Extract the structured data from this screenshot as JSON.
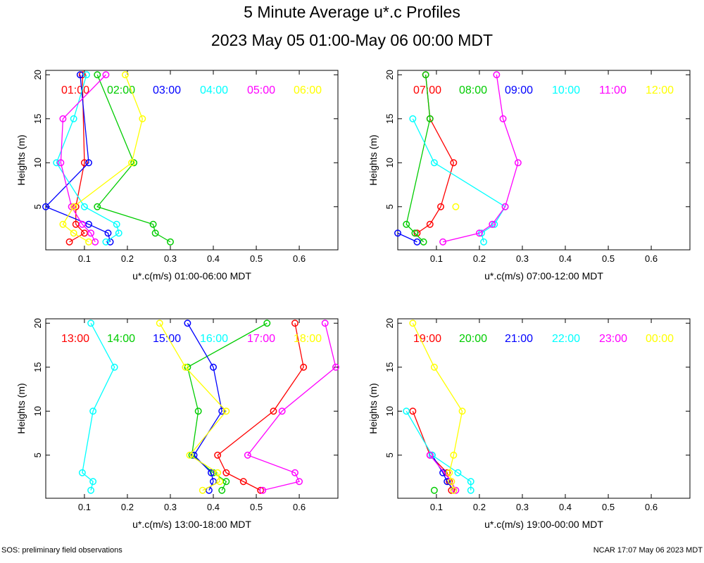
{
  "title": "5 Minute Average u*.c Profiles",
  "subtitle": "2023 May 05 01:00-May 06 00:00 MDT",
  "footer_left": "SOS: preliminary field observations",
  "footer_right": "NCAR 17:07 May 06 2023 MDT",
  "colors": [
    "#ff0000",
    "#00cc00",
    "#0000ff",
    "#00ffff",
    "#ff00ff",
    "#ffff00"
  ],
  "chart_data": [
    {
      "type": "line",
      "xlabel": "u*.c(m/s) 01:00-06:00 MDT",
      "ylabel": "Heights (m)",
      "xlim": [
        0.01,
        0.69
      ],
      "ylim": [
        0.1,
        20.5
      ],
      "xticks": [
        "0.1",
        "0.2",
        "0.3",
        "0.4",
        "0.5",
        "0.6"
      ],
      "yticks": [
        "5",
        "10",
        "15",
        "20"
      ],
      "series": [
        {
          "name": "01:00",
          "points": [
            [
              0.065,
              1
            ],
            [
              0.1,
              2
            ],
            [
              0.08,
              3
            ],
            [
              0.08,
              5
            ],
            [
              0.1,
              10
            ],
            [
              0.095,
              20
            ]
          ]
        },
        {
          "name": "02:00",
          "points": [
            [
              0.3,
              1
            ],
            [
              0.265,
              2
            ],
            [
              0.26,
              3
            ],
            [
              0.13,
              5
            ],
            [
              0.215,
              10
            ],
            [
              0.13,
              20
            ]
          ]
        },
        {
          "name": "03:00",
          "points": [
            [
              0.16,
              1
            ],
            [
              0.155,
              2
            ],
            [
              0.11,
              3
            ],
            [
              0.01,
              5
            ],
            [
              0.11,
              10
            ],
            [
              0.09,
              20
            ]
          ]
        },
        {
          "name": "04:00",
          "points": [
            [
              0.15,
              1
            ],
            [
              0.18,
              2
            ],
            [
              0.175,
              3
            ],
            [
              0.1,
              5
            ],
            [
              0.035,
              10
            ],
            [
              0.075,
              15
            ],
            [
              0.105,
              20
            ]
          ]
        },
        {
          "name": "05:00",
          "points": [
            [
              0.125,
              1
            ],
            [
              0.115,
              2
            ],
            [
              0.095,
              3
            ],
            [
              0.07,
              5
            ],
            [
              0.045,
              10
            ],
            [
              0.05,
              15
            ],
            [
              0.15,
              20
            ]
          ]
        },
        {
          "name": "06:00",
          "points": [
            [
              0.11,
              1
            ],
            [
              0.075,
              2
            ],
            [
              0.05,
              3
            ],
            [
              0.075,
              5
            ],
            [
              0.21,
              10
            ],
            [
              0.235,
              15
            ],
            [
              0.195,
              20
            ]
          ]
        }
      ]
    },
    {
      "type": "line",
      "xlabel": "u*.c(m/s) 07:00-12:00 MDT",
      "ylabel": "Heights (m)",
      "xlim": [
        0.01,
        0.69
      ],
      "ylim": [
        0.1,
        20.5
      ],
      "xticks": [
        "0.1",
        "0.2",
        "0.3",
        "0.4",
        "0.5",
        "0.6"
      ],
      "yticks": [
        "5",
        "10",
        "15",
        "20"
      ],
      "series": [
        {
          "name": "07:00",
          "points": [
            [
              0.055,
              2
            ],
            [
              0.085,
              3
            ],
            [
              0.11,
              5
            ],
            [
              0.14,
              10
            ],
            [
              0.085,
              15
            ],
            [
              0.075,
              20
            ]
          ]
        },
        {
          "name": "08:00",
          "points": [
            [
              0.07,
              1
            ],
            [
              0.05,
              2
            ],
            [
              0.03,
              3
            ],
            [
              0.085,
              15
            ],
            [
              0.075,
              20
            ]
          ]
        },
        {
          "name": "09:00",
          "points": [
            [
              0.055,
              1
            ],
            [
              0.01,
              2
            ]
          ]
        },
        {
          "name": "10:00",
          "points": [
            [
              0.21,
              1
            ],
            [
              0.205,
              2
            ],
            [
              0.235,
              3
            ],
            [
              0.26,
              5
            ],
            [
              0.095,
              10
            ],
            [
              0.045,
              15
            ]
          ]
        },
        {
          "name": "11:00",
          "points": [
            [
              0.115,
              1
            ],
            [
              0.2,
              2
            ],
            [
              0.23,
              3
            ],
            [
              0.26,
              5
            ],
            [
              0.29,
              10
            ],
            [
              0.255,
              15
            ],
            [
              0.24,
              20
            ]
          ]
        },
        {
          "name": "12:00",
          "points": [
            [
              0.145,
              5
            ]
          ]
        }
      ]
    },
    {
      "type": "line",
      "xlabel": "u*.c(m/s) 13:00-18:00 MDT",
      "ylabel": "Heights (m)",
      "xlim": [
        0.01,
        0.69
      ],
      "ylim": [
        0.1,
        20.5
      ],
      "xticks": [
        "0.1",
        "0.2",
        "0.3",
        "0.4",
        "0.5",
        "0.6"
      ],
      "yticks": [
        "5",
        "10",
        "15",
        "20"
      ],
      "series": [
        {
          "name": "13:00",
          "points": [
            [
              0.51,
              1
            ],
            [
              0.47,
              2
            ],
            [
              0.43,
              3
            ],
            [
              0.41,
              5
            ],
            [
              0.54,
              10
            ],
            [
              0.61,
              15
            ],
            [
              0.59,
              20
            ]
          ]
        },
        {
          "name": "14:00",
          "points": [
            [
              0.42,
              1
            ],
            [
              0.43,
              2
            ],
            [
              0.4,
              3
            ],
            [
              0.35,
              5
            ],
            [
              0.365,
              10
            ],
            [
              0.34,
              15
            ],
            [
              0.525,
              20
            ]
          ]
        },
        {
          "name": "15:00",
          "points": [
            [
              0.39,
              1
            ],
            [
              0.4,
              2
            ],
            [
              0.395,
              3
            ],
            [
              0.355,
              5
            ],
            [
              0.42,
              10
            ],
            [
              0.4,
              15
            ],
            [
              0.34,
              20
            ]
          ]
        },
        {
          "name": "16:00",
          "points": [
            [
              0.115,
              1
            ],
            [
              0.12,
              2
            ],
            [
              0.095,
              3
            ],
            [
              0.12,
              10
            ],
            [
              0.17,
              15
            ],
            [
              0.115,
              20
            ]
          ]
        },
        {
          "name": "17:00",
          "points": [
            [
              0.515,
              1
            ],
            [
              0.6,
              2
            ],
            [
              0.59,
              3
            ],
            [
              0.48,
              5
            ],
            [
              0.56,
              10
            ],
            [
              0.685,
              15
            ],
            [
              0.66,
              20
            ]
          ]
        },
        {
          "name": "18:00",
          "points": [
            [
              0.375,
              1
            ],
            [
              0.415,
              2
            ],
            [
              0.41,
              3
            ],
            [
              0.345,
              5
            ],
            [
              0.43,
              10
            ],
            [
              0.335,
              15
            ],
            [
              0.275,
              20
            ]
          ]
        }
      ]
    },
    {
      "type": "line",
      "xlabel": "u*.c(m/s) 19:00-00:00 MDT",
      "ylabel": "Heights (m)",
      "xlim": [
        0.01,
        0.69
      ],
      "ylim": [
        0.1,
        20.5
      ],
      "xticks": [
        "0.1",
        "0.2",
        "0.3",
        "0.4",
        "0.5",
        "0.6"
      ],
      "yticks": [
        "5",
        "10",
        "15",
        "20"
      ],
      "series": [
        {
          "name": "19:00",
          "points": [
            [
              0.135,
              1
            ],
            [
              0.13,
              2
            ],
            [
              0.125,
              3
            ],
            [
              0.085,
              5
            ],
            [
              0.045,
              10
            ]
          ]
        },
        {
          "name": "20:00",
          "points": [
            [
              0.095,
              1
            ]
          ]
        },
        {
          "name": "21:00",
          "points": [
            [
              0.14,
              1
            ],
            [
              0.125,
              2
            ],
            [
              0.115,
              3
            ],
            [
              0.09,
              5
            ]
          ]
        },
        {
          "name": "22:00",
          "points": [
            [
              0.18,
              1
            ],
            [
              0.18,
              2
            ],
            [
              0.15,
              3
            ],
            [
              0.09,
              5
            ],
            [
              0.03,
              10
            ]
          ]
        },
        {
          "name": "23:00",
          "points": [
            [
              0.145,
              1
            ],
            [
              0.135,
              2
            ],
            [
              0.085,
              5
            ]
          ]
        },
        {
          "name": "00:00",
          "points": [
            [
              0.14,
              1
            ],
            [
              0.135,
              2
            ],
            [
              0.13,
              3
            ],
            [
              0.14,
              5
            ],
            [
              0.16,
              10
            ],
            [
              0.095,
              15
            ],
            [
              0.045,
              20
            ]
          ]
        }
      ]
    }
  ]
}
